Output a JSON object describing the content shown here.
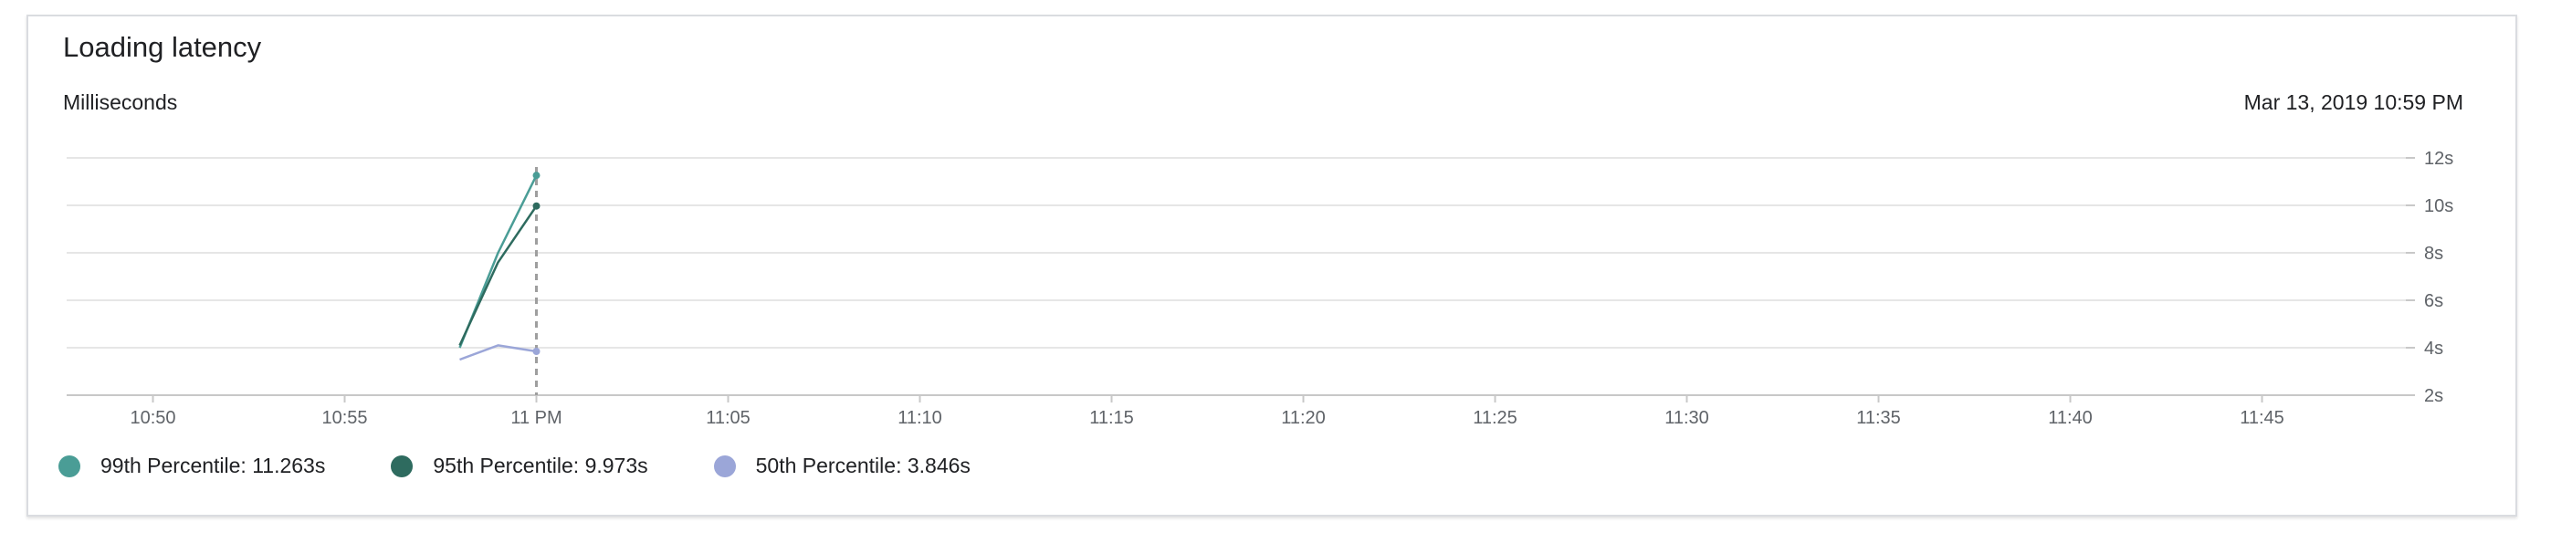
{
  "card": {
    "title": "Loading latency",
    "subtitle": "Milliseconds",
    "timestamp": "Mar 13, 2019 10:59 PM"
  },
  "legend": [
    {
      "label": "99th Percentile: 11.263s",
      "color": "#4a9d96"
    },
    {
      "label": "95th Percentile: 9.973s",
      "color": "#2e6b5f"
    },
    {
      "label": "50th Percentile: 3.846s",
      "color": "#9ba6d8"
    }
  ],
  "chart_data": {
    "type": "line",
    "x_unit": "time (Mar 13, 2019)",
    "x_ticks": [
      "10:50",
      "10:55",
      "11 PM",
      "11:05",
      "11:10",
      "11:15",
      "11:20",
      "11:25",
      "11:30",
      "11:35",
      "11:40",
      "11:45"
    ],
    "x_tick_values": [
      "22:50",
      "22:55",
      "23:00",
      "23:05",
      "23:10",
      "23:15",
      "23:20",
      "23:25",
      "23:30",
      "23:35",
      "23:40",
      "23:45"
    ],
    "xlim": [
      "22:47:45",
      "23:48:45"
    ],
    "y_ticks": [
      "2s",
      "4s",
      "6s",
      "8s",
      "10s",
      "12s"
    ],
    "y_tick_values": [
      2,
      4,
      6,
      8,
      10,
      12
    ],
    "ylim": [
      2,
      12
    ],
    "ylabel": "Milliseconds",
    "grid": true,
    "y_axis_side": "right",
    "legend_position": "bottom-left",
    "cursor_time": "22:59",
    "series": [
      {
        "name": "99th Percentile",
        "color": "#4a9d96",
        "x": [
          "22:58",
          "22:59",
          "23:00"
        ],
        "values": [
          4.0,
          8.0,
          11.263
        ]
      },
      {
        "name": "95th Percentile",
        "color": "#2e6b5f",
        "x": [
          "22:58",
          "22:59",
          "23:00"
        ],
        "values": [
          4.1,
          7.6,
          9.973
        ]
      },
      {
        "name": "50th Percentile",
        "color": "#9ba6d8",
        "x": [
          "22:58",
          "22:59",
          "23:00"
        ],
        "values": [
          3.5,
          4.1,
          3.846
        ]
      }
    ]
  }
}
